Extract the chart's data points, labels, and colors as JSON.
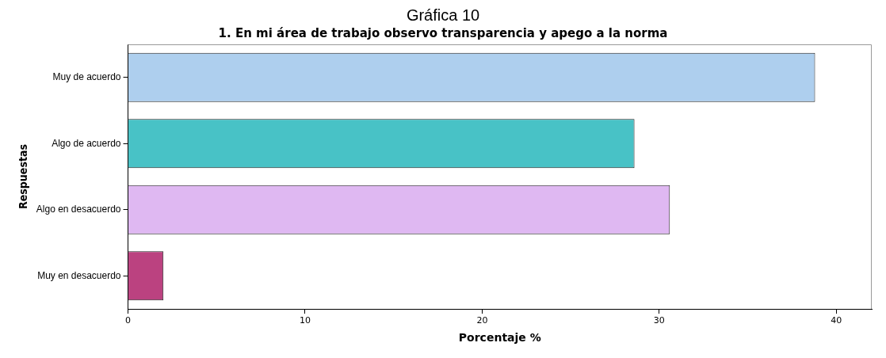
{
  "chart_data": {
    "type": "bar",
    "orientation": "horizontal",
    "title": "Gráfica 10",
    "subtitle": "1. En mi área de trabajo observo transparencia y apego a la norma",
    "xlabel": "Porcentaje %",
    "ylabel": "Respuestas",
    "categories": [
      "Muy de acuerdo",
      "Algo de acuerdo",
      "Algo en desacuerdo",
      "Muy en desacuerdo"
    ],
    "values": [
      38.8,
      28.6,
      30.6,
      2.0
    ],
    "colors": [
      "#aecfee",
      "#48c2c6",
      "#dfb8f2",
      "#bb4280"
    ],
    "xlim": [
      0,
      42
    ],
    "xticks": [
      0,
      10,
      20,
      30,
      40
    ],
    "grid": false,
    "legend": false
  }
}
